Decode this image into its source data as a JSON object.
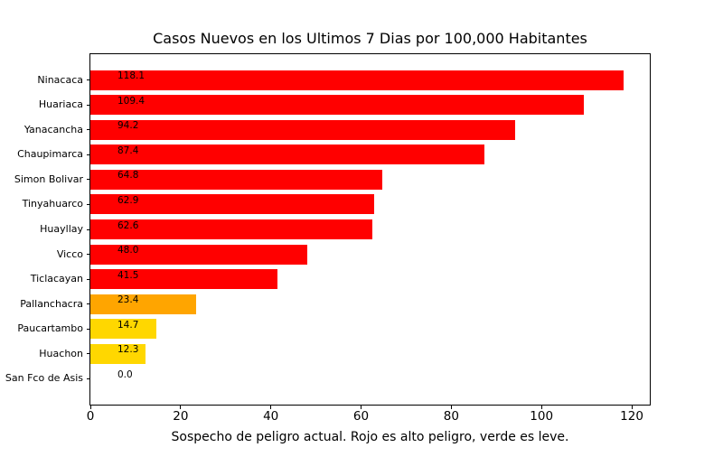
{
  "figure": {
    "background_color": "#ffffff",
    "axis_color": "#000000",
    "text_color": "#000000"
  },
  "chart_data": {
    "type": "bar",
    "orientation": "horizontal",
    "title": "Casos Nuevos en los Ultimos 7 Dias por 100,000 Habitantes",
    "xlabel": "Sospecho de peligro actual. Rojo es alto peligro, verde es leve.",
    "ylabel": "",
    "categories": [
      "Ninacaca",
      "Huariaca",
      "Yanacancha",
      "Chaupimarca",
      "Simon Bolivar",
      "Tinyahuarco",
      "Huayllay",
      "Vicco",
      "Ticlacayan",
      "Pallanchacra",
      "Paucartambo",
      "Huachon",
      "San Fco de Asis"
    ],
    "values": [
      118.1,
      109.4,
      94.2,
      87.4,
      64.8,
      62.9,
      62.6,
      48.0,
      41.5,
      23.4,
      14.7,
      12.3,
      0.0
    ],
    "bar_labels": [
      "118.1",
      "109.4",
      "94.2",
      "87.4",
      "64.8",
      "62.9",
      "62.6",
      "48.0",
      "41.5",
      "23.4",
      "14.7",
      "12.3",
      "0.0"
    ],
    "bar_colors": [
      "#ff0000",
      "#ff0000",
      "#ff0000",
      "#ff0000",
      "#ff0000",
      "#ff0000",
      "#ff0000",
      "#ff0000",
      "#ff0000",
      "#ffa500",
      "#ffd700",
      "#ffd700",
      null
    ],
    "danger_colors": {
      "high": "#ff0000",
      "medium": "#ffa500",
      "low": "#ffd700"
    },
    "x_ticks": [
      0,
      20,
      40,
      60,
      80,
      100,
      120
    ],
    "x_tick_labels": [
      "0",
      "20",
      "40",
      "60",
      "80",
      "100",
      "120"
    ],
    "xlim": [
      0,
      124
    ],
    "grid": false,
    "legend": null
  }
}
